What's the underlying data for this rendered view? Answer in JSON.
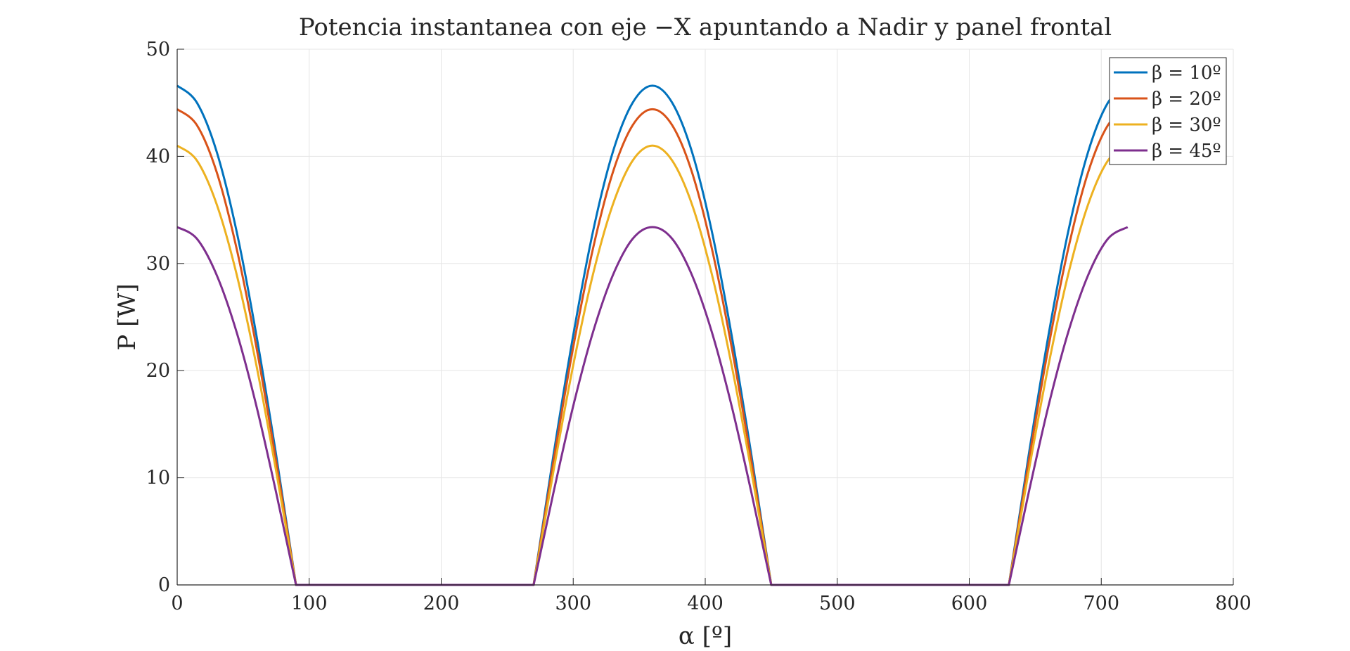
{
  "chart_data": {
    "type": "line",
    "title": "Potencia instantanea con eje −X apuntando a Nadir y panel frontal",
    "xlabel": "α [º]",
    "ylabel": "P [W]",
    "xlim": [
      0,
      800
    ],
    "ylim": [
      0,
      50
    ],
    "xticks": [
      0,
      100,
      200,
      300,
      400,
      500,
      600,
      700,
      800
    ],
    "yticks": [
      0,
      10,
      20,
      30,
      40,
      50
    ],
    "grid": true,
    "legend_position": "top-right",
    "x_domain": [
      0,
      720
    ],
    "series": [
      {
        "name": "β = 10º",
        "color": "#0072BD",
        "x": [
          0,
          15,
          30,
          45,
          60,
          75,
          90,
          120,
          180,
          240,
          270,
          285,
          300,
          315,
          330,
          345,
          360,
          375,
          390,
          405,
          420,
          435,
          450,
          480,
          540,
          600,
          630,
          645,
          660,
          675,
          690,
          705,
          720
        ],
        "y": [
          46.6,
          45.0,
          40.4,
          33.0,
          23.3,
          12.1,
          0,
          0,
          0,
          0,
          0,
          12.1,
          23.3,
          33.0,
          40.4,
          45.0,
          46.6,
          45.0,
          40.4,
          33.0,
          23.3,
          12.1,
          0,
          0,
          0,
          0,
          0,
          12.1,
          23.3,
          33.0,
          40.4,
          45.0,
          46.6
        ]
      },
      {
        "name": "β = 20º",
        "color": "#D95319",
        "x": [
          0,
          15,
          30,
          45,
          60,
          75,
          90,
          120,
          180,
          240,
          270,
          285,
          300,
          315,
          330,
          345,
          360,
          375,
          390,
          405,
          420,
          435,
          450,
          480,
          540,
          600,
          630,
          645,
          660,
          675,
          690,
          705,
          720
        ],
        "y": [
          44.4,
          42.9,
          38.5,
          31.4,
          22.2,
          11.5,
          0,
          0,
          0,
          0,
          0,
          11.5,
          22.2,
          31.4,
          38.5,
          42.9,
          44.4,
          42.9,
          38.5,
          31.4,
          22.2,
          11.5,
          0,
          0,
          0,
          0,
          0,
          11.5,
          22.2,
          31.4,
          38.5,
          42.9,
          44.4
        ]
      },
      {
        "name": "β = 30º",
        "color": "#EDB120",
        "x": [
          0,
          15,
          30,
          45,
          60,
          75,
          90,
          120,
          180,
          240,
          270,
          285,
          300,
          315,
          330,
          345,
          360,
          375,
          390,
          405,
          420,
          435,
          450,
          480,
          540,
          600,
          630,
          645,
          660,
          675,
          690,
          705,
          720
        ],
        "y": [
          41.0,
          39.6,
          35.5,
          29.0,
          20.5,
          10.6,
          0,
          0,
          0,
          0,
          0,
          10.6,
          20.5,
          29.0,
          35.5,
          39.6,
          41.0,
          39.6,
          35.5,
          29.0,
          20.5,
          10.6,
          0,
          0,
          0,
          0,
          0,
          10.6,
          20.5,
          29.0,
          35.5,
          39.6,
          41.0
        ]
      },
      {
        "name": "β = 45º",
        "color": "#7E2F8E",
        "x": [
          0,
          15,
          30,
          45,
          60,
          75,
          90,
          120,
          180,
          240,
          270,
          285,
          300,
          315,
          330,
          345,
          360,
          375,
          390,
          405,
          420,
          435,
          450,
          480,
          540,
          600,
          630,
          645,
          660,
          675,
          690,
          705,
          720
        ],
        "y": [
          33.4,
          32.3,
          28.9,
          23.6,
          16.7,
          8.6,
          0,
          0,
          0,
          0,
          0,
          8.6,
          16.7,
          23.6,
          28.9,
          32.3,
          33.4,
          32.3,
          28.9,
          23.6,
          16.7,
          8.6,
          0,
          0,
          0,
          0,
          0,
          8.6,
          16.7,
          23.6,
          28.9,
          32.3,
          33.4
        ]
      }
    ]
  }
}
